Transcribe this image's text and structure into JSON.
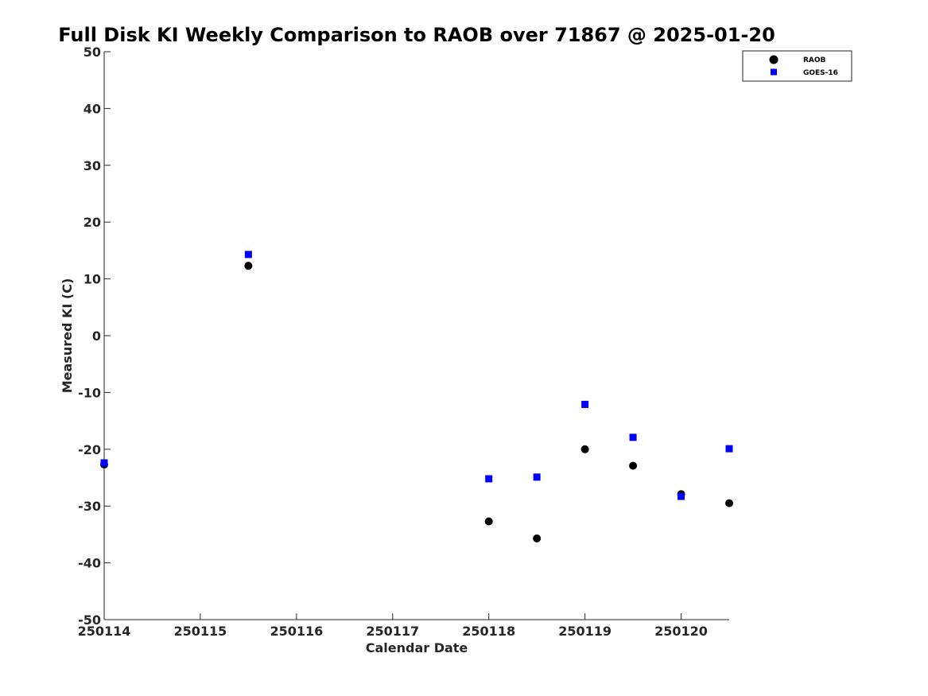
{
  "chart_data": {
    "type": "scatter",
    "title": "Full Disk KI Weekly Comparison to RAOB over 71867 @ 2025-01-20",
    "xlabel": "Calendar Date",
    "ylabel": "Measured KI (C)",
    "xlim": [
      "2025-01-14",
      "2025-01-20 12:00"
    ],
    "ylim": [
      -50,
      50
    ],
    "x_ticks": [
      "250114",
      "250115",
      "250116",
      "250117",
      "250118",
      "250119",
      "250120"
    ],
    "y_ticks": [
      "50",
      "40",
      "30",
      "20",
      "10",
      "0",
      "-10",
      "-20",
      "-30",
      "-40",
      "-50"
    ],
    "grid": false,
    "legend_position": "top-right",
    "series": [
      {
        "name": "RAOB",
        "marker": "circle",
        "color": "#000000",
        "points": [
          {
            "x": "2025-01-14 00:00",
            "y": -22.7
          },
          {
            "x": "2025-01-15 12:00",
            "y": 12.3
          },
          {
            "x": "2025-01-18 00:00",
            "y": -32.7
          },
          {
            "x": "2025-01-18 12:00",
            "y": -35.7
          },
          {
            "x": "2025-01-19 00:00",
            "y": -20.0
          },
          {
            "x": "2025-01-19 12:00",
            "y": -22.9
          },
          {
            "x": "2025-01-20 00:00",
            "y": -27.9
          },
          {
            "x": "2025-01-20 12:00",
            "y": -29.5
          }
        ]
      },
      {
        "name": "GOES-16",
        "marker": "square",
        "color": "#0000ff",
        "points": [
          {
            "x": "2025-01-14 00:00",
            "y": -22.4
          },
          {
            "x": "2025-01-15 12:00",
            "y": 14.3
          },
          {
            "x": "2025-01-18 00:00",
            "y": -25.2
          },
          {
            "x": "2025-01-18 12:00",
            "y": -24.9
          },
          {
            "x": "2025-01-19 00:00",
            "y": -12.1
          },
          {
            "x": "2025-01-19 12:00",
            "y": -17.9
          },
          {
            "x": "2025-01-20 00:00",
            "y": -28.3
          },
          {
            "x": "2025-01-20 12:00",
            "y": -19.9
          }
        ]
      }
    ]
  }
}
